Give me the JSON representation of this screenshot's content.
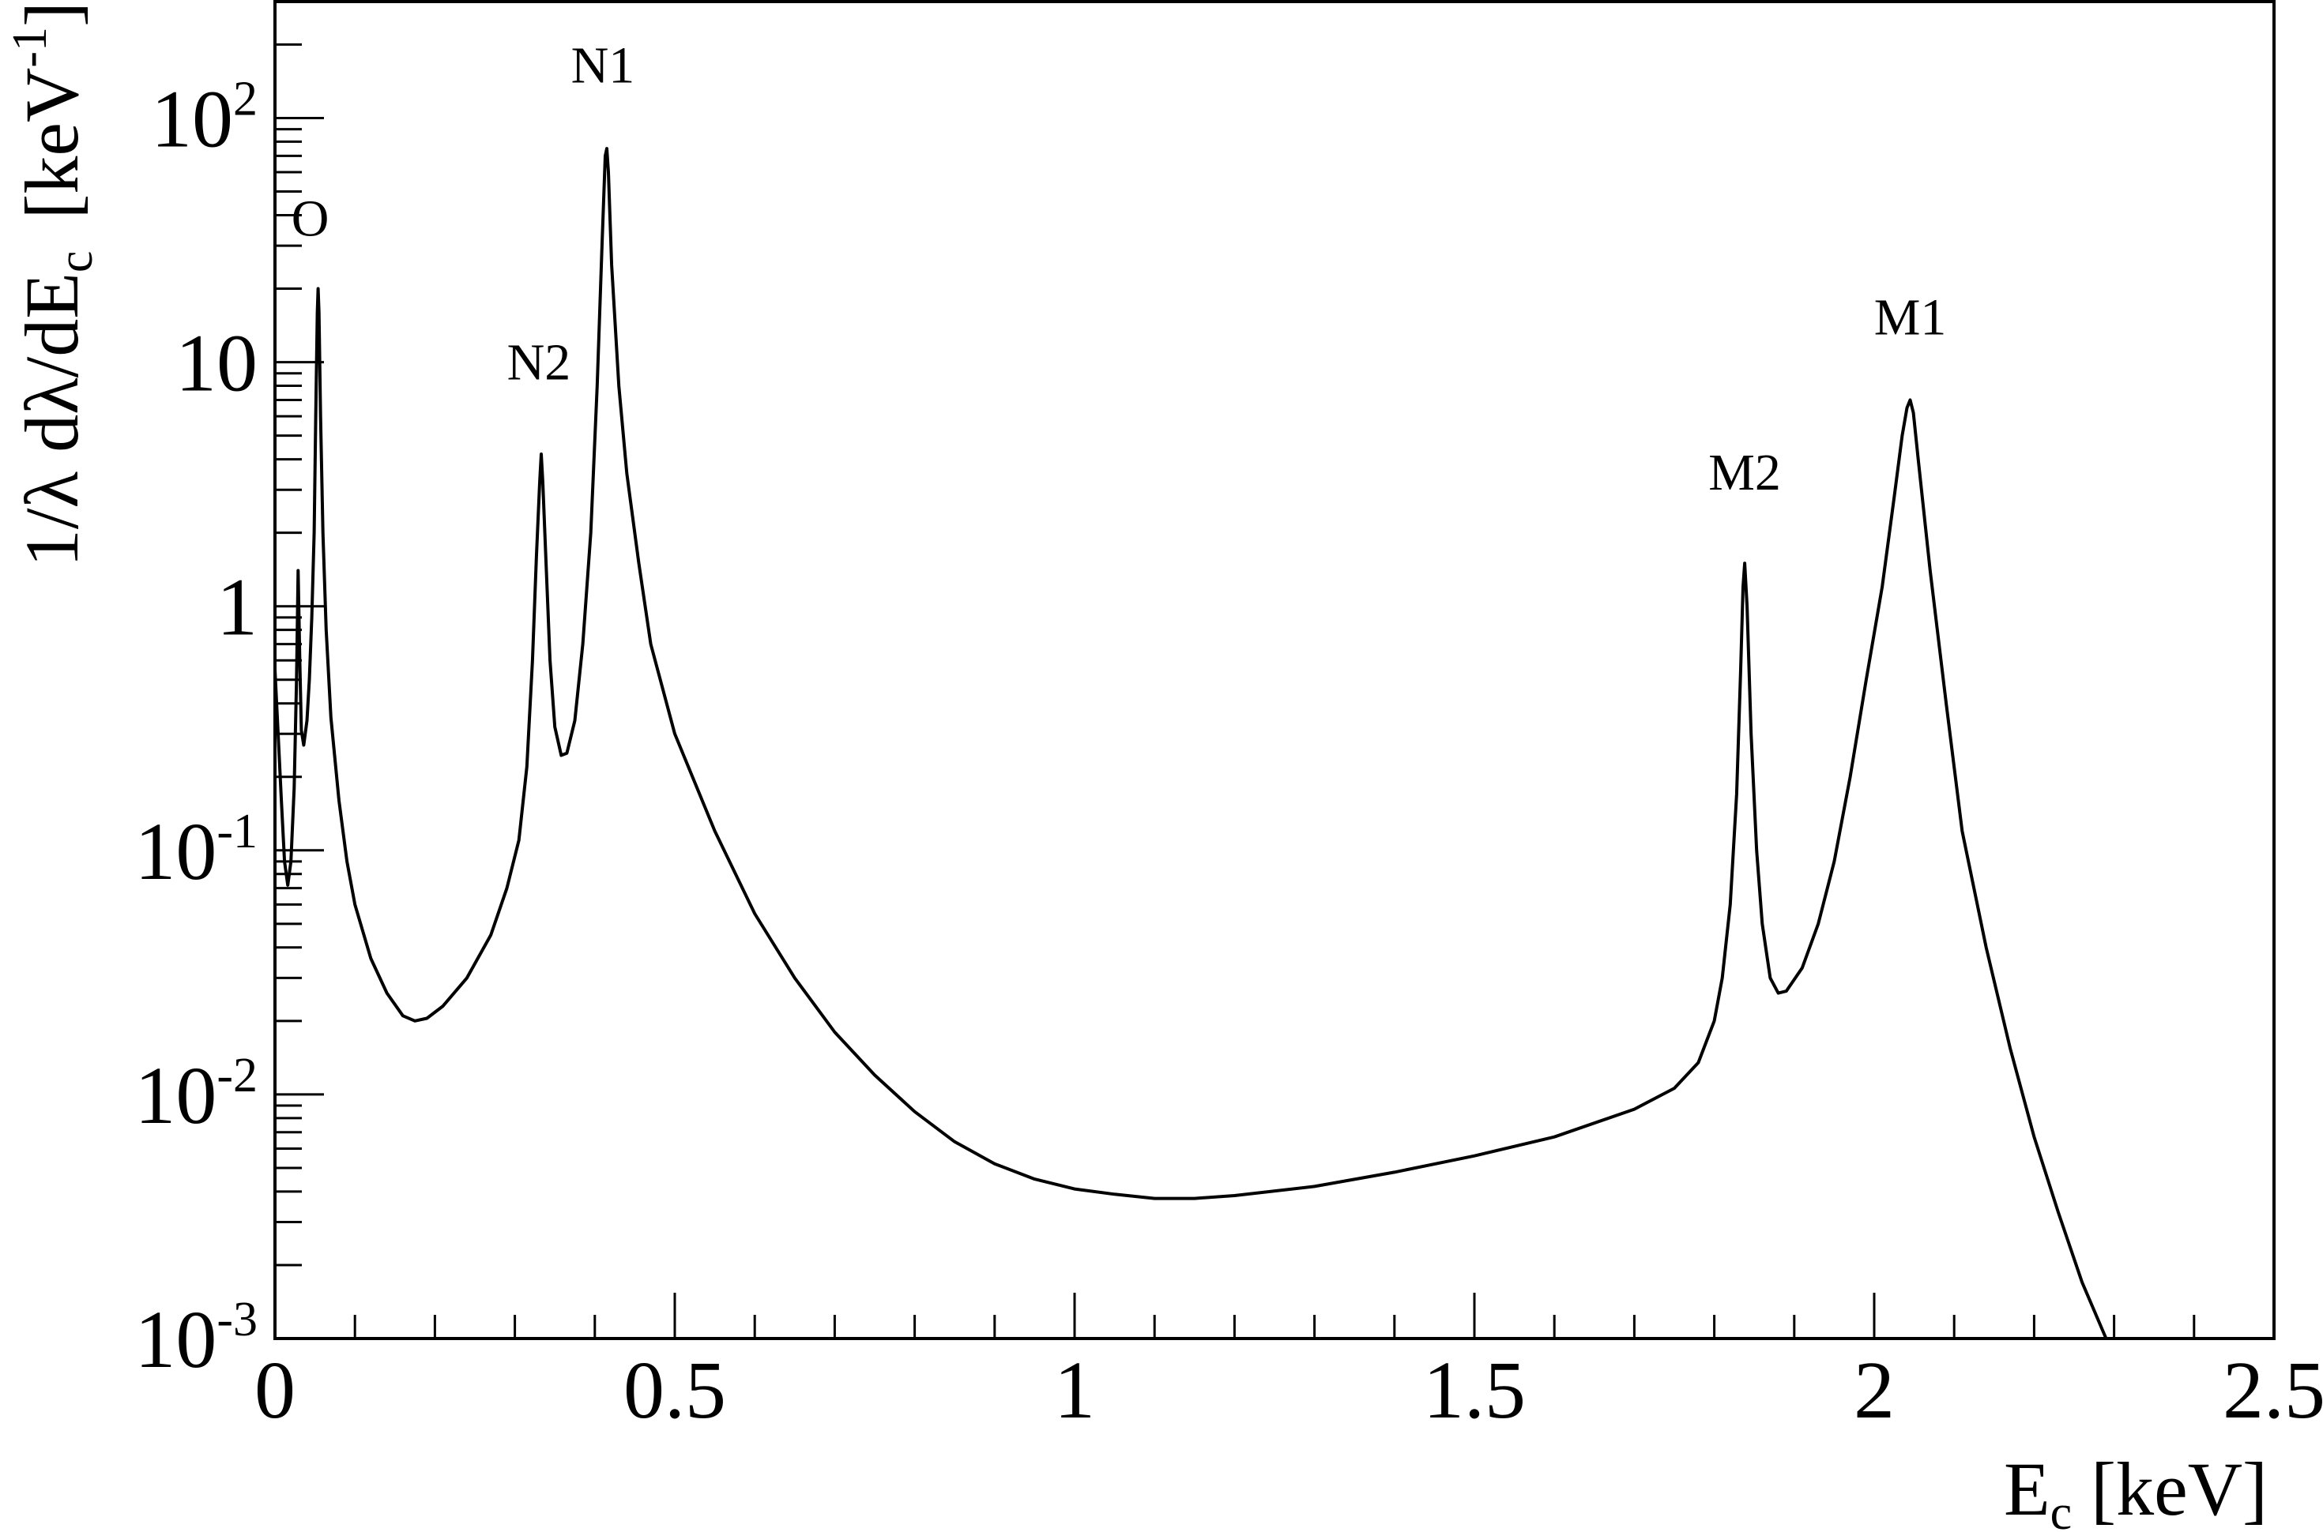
{
  "chart_data": {
    "type": "line",
    "title": "",
    "xlabel": "E",
    "xlabel_sub": "c",
    "xlabel_unit": " [keV]",
    "ylabel": "1/λ dλ/dE",
    "ylabel_sub": "c",
    "ylabel_unit_pre": "[keV",
    "ylabel_unit_sup": "-1",
    "ylabel_unit_post": "]",
    "xlim": [
      0,
      2.5
    ],
    "ylim": [
      0.001,
      300
    ],
    "yscale": "log",
    "grid": false,
    "legend": "none",
    "line_color": "#000000",
    "x_ticks": [
      {
        "value": 0,
        "label": "0"
      },
      {
        "value": 0.5,
        "label": "0.5"
      },
      {
        "value": 1,
        "label": "1"
      },
      {
        "value": 1.5,
        "label": "1.5"
      },
      {
        "value": 2,
        "label": "2"
      },
      {
        "value": 2.5,
        "label": "2.5"
      }
    ],
    "y_ticks": [
      {
        "value": 0.001,
        "base": "10",
        "exp": "-3"
      },
      {
        "value": 0.01,
        "base": "10",
        "exp": "-2"
      },
      {
        "value": 0.1,
        "base": "10",
        "exp": "-1"
      },
      {
        "value": 1,
        "base": "1",
        "exp": ""
      },
      {
        "value": 10,
        "base": "10",
        "exp": ""
      },
      {
        "value": 100,
        "base": "10",
        "exp": "2"
      }
    ],
    "annotations": [
      {
        "text": "O",
        "x": 0.044,
        "y": 33
      },
      {
        "text": "N2",
        "x": 0.33,
        "y": 8.5
      },
      {
        "text": "N1",
        "x": 0.41,
        "y": 140
      },
      {
        "text": "M2",
        "x": 1.838,
        "y": 3.0
      },
      {
        "text": "M1",
        "x": 2.045,
        "y": 13
      }
    ],
    "series": [
      {
        "points": [
          [
            0.0,
            0.55
          ],
          [
            0.004,
            0.3
          ],
          [
            0.008,
            0.16
          ],
          [
            0.012,
            0.09
          ],
          [
            0.016,
            0.072
          ],
          [
            0.02,
            0.09
          ],
          [
            0.024,
            0.18
          ],
          [
            0.027,
            0.5
          ],
          [
            0.029,
            1.4
          ],
          [
            0.031,
            0.6
          ],
          [
            0.033,
            0.31
          ],
          [
            0.036,
            0.27
          ],
          [
            0.04,
            0.34
          ],
          [
            0.043,
            0.5
          ],
          [
            0.046,
            0.9
          ],
          [
            0.049,
            2.0
          ],
          [
            0.051,
            6.0
          ],
          [
            0.053,
            16
          ],
          [
            0.054,
            20
          ],
          [
            0.055,
            16
          ],
          [
            0.057,
            6.0
          ],
          [
            0.06,
            2.0
          ],
          [
            0.064,
            0.8
          ],
          [
            0.07,
            0.35
          ],
          [
            0.08,
            0.16
          ],
          [
            0.09,
            0.09
          ],
          [
            0.1,
            0.06
          ],
          [
            0.12,
            0.036
          ],
          [
            0.14,
            0.026
          ],
          [
            0.16,
            0.021
          ],
          [
            0.175,
            0.02
          ],
          [
            0.19,
            0.0205
          ],
          [
            0.21,
            0.023
          ],
          [
            0.24,
            0.03
          ],
          [
            0.27,
            0.045
          ],
          [
            0.29,
            0.07
          ],
          [
            0.305,
            0.11
          ],
          [
            0.315,
            0.22
          ],
          [
            0.322,
            0.6
          ],
          [
            0.327,
            1.6
          ],
          [
            0.331,
            3.2
          ],
          [
            0.333,
            4.2
          ],
          [
            0.335,
            3.2
          ],
          [
            0.339,
            1.5
          ],
          [
            0.344,
            0.6
          ],
          [
            0.35,
            0.32
          ],
          [
            0.358,
            0.245
          ],
          [
            0.365,
            0.25
          ],
          [
            0.375,
            0.34
          ],
          [
            0.385,
            0.7
          ],
          [
            0.395,
            2.0
          ],
          [
            0.403,
            8.0
          ],
          [
            0.409,
            30
          ],
          [
            0.413,
            70
          ],
          [
            0.415,
            75
          ],
          [
            0.417,
            60
          ],
          [
            0.421,
            25
          ],
          [
            0.43,
            8.0
          ],
          [
            0.44,
            3.5
          ],
          [
            0.455,
            1.5
          ],
          [
            0.47,
            0.7
          ],
          [
            0.5,
            0.3
          ],
          [
            0.55,
            0.12
          ],
          [
            0.6,
            0.055
          ],
          [
            0.65,
            0.03
          ],
          [
            0.7,
            0.018
          ],
          [
            0.75,
            0.012
          ],
          [
            0.8,
            0.0085
          ],
          [
            0.85,
            0.0064
          ],
          [
            0.9,
            0.0052
          ],
          [
            0.95,
            0.0045
          ],
          [
            1.0,
            0.0041
          ],
          [
            1.05,
            0.0039
          ],
          [
            1.1,
            0.00375
          ],
          [
            1.15,
            0.00375
          ],
          [
            1.2,
            0.00385
          ],
          [
            1.3,
            0.0042
          ],
          [
            1.4,
            0.0048
          ],
          [
            1.5,
            0.0056
          ],
          [
            1.6,
            0.0067
          ],
          [
            1.7,
            0.0087
          ],
          [
            1.75,
            0.0106
          ],
          [
            1.78,
            0.0135
          ],
          [
            1.8,
            0.02
          ],
          [
            1.81,
            0.03
          ],
          [
            1.82,
            0.06
          ],
          [
            1.828,
            0.17
          ],
          [
            1.833,
            0.55
          ],
          [
            1.836,
            1.2
          ],
          [
            1.838,
            1.5
          ],
          [
            1.841,
            1.0
          ],
          [
            1.846,
            0.3
          ],
          [
            1.853,
            0.1
          ],
          [
            1.86,
            0.05
          ],
          [
            1.87,
            0.03
          ],
          [
            1.88,
            0.026
          ],
          [
            1.89,
            0.0265
          ],
          [
            1.91,
            0.033
          ],
          [
            1.93,
            0.05
          ],
          [
            1.95,
            0.09
          ],
          [
            1.97,
            0.2
          ],
          [
            1.99,
            0.5
          ],
          [
            2.01,
            1.2
          ],
          [
            2.025,
            2.8
          ],
          [
            2.035,
            5.0
          ],
          [
            2.041,
            6.5
          ],
          [
            2.045,
            7.0
          ],
          [
            2.049,
            6.2
          ],
          [
            2.055,
            4.0
          ],
          [
            2.07,
            1.4
          ],
          [
            2.09,
            0.4
          ],
          [
            2.11,
            0.12
          ],
          [
            2.14,
            0.04
          ],
          [
            2.17,
            0.0155
          ],
          [
            2.2,
            0.0067
          ],
          [
            2.23,
            0.0033
          ],
          [
            2.26,
            0.0017
          ],
          [
            2.29,
            0.001
          ]
        ]
      }
    ]
  }
}
